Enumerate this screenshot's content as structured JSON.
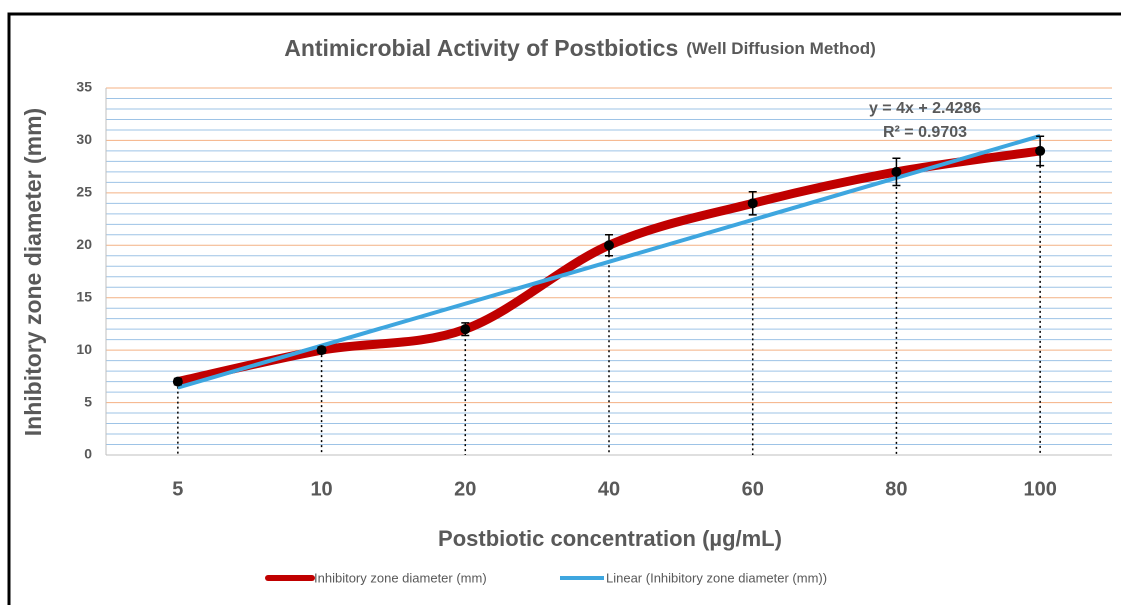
{
  "chart_data": {
    "type": "line",
    "title": "Antimicrobial Activity of Postbiotics",
    "title_note": "(Well Diffusion Method)",
    "x_label": "Postbiotic concentration (µg/mL)",
    "y_label": "Inhibitory zone diameter (mm)",
    "categories": [
      "5",
      "10",
      "20",
      "40",
      "60",
      "80",
      "100"
    ],
    "series": [
      {
        "name": "Inhibitory zone diameter (mm)",
        "color": "#c00000",
        "values": [
          7,
          10,
          12,
          20,
          24,
          27,
          29
        ],
        "errors": [
          0.3,
          0.3,
          0.6,
          1,
          1.1,
          1.3,
          1.4
        ]
      }
    ],
    "trendline": {
      "name": "Linear (Inhibitory zone diameter (mm))",
      "color": "#3ea6df",
      "values": [
        6.4286,
        10.4286,
        14.4286,
        18.4286,
        22.4286,
        26.4286,
        30.4286
      ]
    },
    "annotations": [
      "y = 4x + 2.4286",
      "R² = 0.9703"
    ],
    "ylim": [
      0,
      35
    ],
    "yticks": [
      0,
      5,
      10,
      15,
      20,
      25,
      30,
      35
    ],
    "minor_yticks": [
      1,
      2,
      3,
      4,
      6,
      7,
      8,
      9,
      11,
      12,
      13,
      14,
      16,
      17,
      18,
      19,
      21,
      22,
      23,
      24,
      26,
      27,
      28,
      29,
      31,
      32,
      33,
      34
    ],
    "grid": true,
    "legend": "bottom"
  }
}
